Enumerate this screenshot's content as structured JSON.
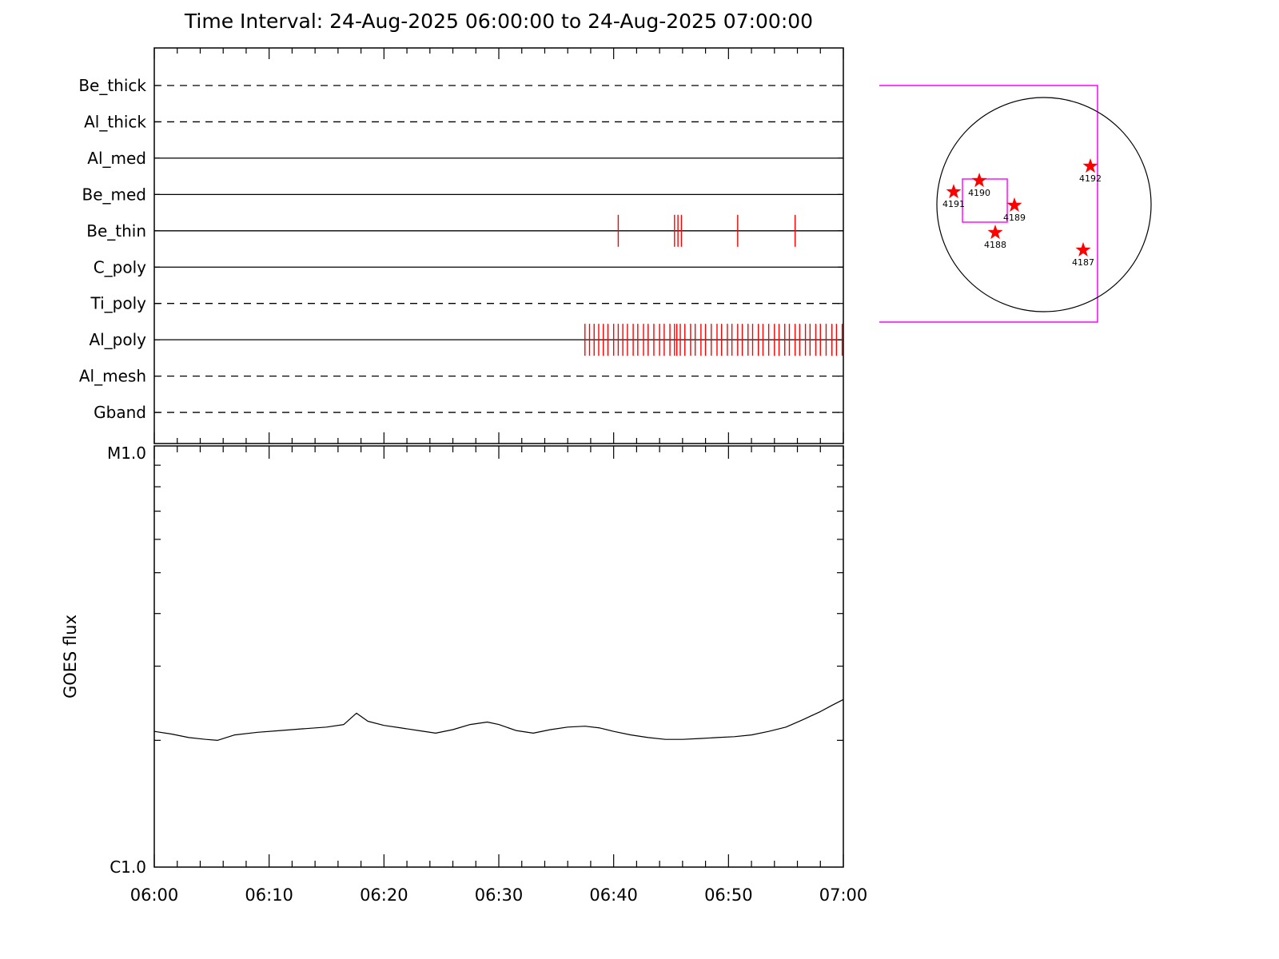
{
  "title": "Time Interval: 24-Aug-2025 06:00:00 to 24-Aug-2025 07:00:00",
  "colors": {
    "event_tick": "#ff0000",
    "fov": "#ff00ff",
    "axis": "#000000",
    "flux_line": "#000000",
    "star": "#ff0000"
  },
  "chart_data": [
    {
      "id": "xrt-filter-timeline",
      "type": "timeline",
      "x_axis": {
        "start_label": "06:00",
        "end_label": "07:00",
        "duration_min": 60,
        "major_tick_min": 10,
        "minor_tick_min": 2
      },
      "rows": [
        {
          "label": "Be_thick",
          "line": "dashed",
          "events_min": []
        },
        {
          "label": "Al_thick",
          "line": "dashed",
          "events_min": []
        },
        {
          "label": "Al_med",
          "line": "solid",
          "events_min": []
        },
        {
          "label": "Be_med",
          "line": "solid",
          "events_min": []
        },
        {
          "label": "Be_thin",
          "line": "solid",
          "events_min": [
            40.4,
            45.3,
            45.6,
            45.9,
            50.8,
            55.8
          ]
        },
        {
          "label": "C_poly",
          "line": "solid",
          "events_min": []
        },
        {
          "label": "Ti_poly",
          "line": "dashed",
          "events_min": []
        },
        {
          "label": "Al_poly",
          "line": "solid",
          "events_min": [
            37.5,
            37.9,
            38.3,
            38.7,
            39.1,
            39.5,
            40.0,
            40.4,
            40.8,
            41.2,
            41.7,
            42.1,
            42.6,
            43.0,
            43.5,
            44.0,
            44.4,
            44.9,
            45.3,
            45.5,
            45.8,
            46.2,
            46.7,
            47.1,
            47.6,
            48.0,
            48.5,
            49.0,
            49.4,
            49.9,
            50.3,
            50.8,
            51.2,
            51.7,
            52.1,
            52.6,
            53.0,
            53.5,
            54.0,
            54.4,
            54.9,
            55.3,
            55.8,
            56.2,
            56.7,
            57.1,
            57.6,
            58.0,
            58.5,
            59.0,
            59.4,
            59.9
          ]
        },
        {
          "label": "Al_mesh",
          "line": "dashed",
          "events_min": []
        },
        {
          "label": "Gband",
          "line": "dashed",
          "events_min": []
        }
      ]
    },
    {
      "id": "goes-flux",
      "type": "line",
      "ylabel": "GOES flux",
      "y_scale": "log",
      "y_axis": {
        "top_label": "M1.0",
        "bottom_label": "C1.0",
        "top_value": 10,
        "bottom_value": 1,
        "minor_values": [
          2,
          3,
          4,
          5,
          6,
          7,
          8,
          9
        ]
      },
      "x_tick_labels": [
        "06:00",
        "06:10",
        "06:20",
        "06:30",
        "06:40",
        "06:50",
        "07:00"
      ],
      "series": [
        {
          "name": "GOES flux",
          "x_min": [
            0,
            1.5,
            3,
            4.5,
            5.5,
            7,
            9,
            11,
            13,
            15,
            16.5,
            17.6,
            18.6,
            20,
            21.5,
            23,
            24.5,
            26,
            27.5,
            29,
            30,
            31.5,
            33,
            34.5,
            36,
            37.5,
            38.8,
            40,
            41.5,
            43,
            44.5,
            46,
            47.5,
            49,
            50.5,
            52,
            53.5,
            55,
            56.5,
            58,
            59,
            60
          ],
          "y_c": [
            2.1,
            2.07,
            2.03,
            2.01,
            2.0,
            2.06,
            2.09,
            2.11,
            2.13,
            2.15,
            2.18,
            2.32,
            2.22,
            2.17,
            2.14,
            2.11,
            2.08,
            2.12,
            2.18,
            2.21,
            2.18,
            2.11,
            2.08,
            2.12,
            2.15,
            2.16,
            2.14,
            2.1,
            2.06,
            2.03,
            2.01,
            2.01,
            2.02,
            2.03,
            2.04,
            2.06,
            2.1,
            2.15,
            2.24,
            2.34,
            2.42,
            2.5
          ]
        }
      ]
    },
    {
      "id": "solar-disk-inset",
      "type": "scatter",
      "fov_color": "#ff00ff",
      "outer_fov_r": {
        "left": -1.537,
        "right": 0.5,
        "top": 1.112,
        "bottom": -1.097,
        "open_left": true
      },
      "inner_fov_r": {
        "left": -0.761,
        "right": -0.343,
        "top": 0.239,
        "bottom": -0.164
      },
      "active_regions": [
        {
          "noaa": "4191",
          "x_r": -0.843,
          "y_r": 0.119
        },
        {
          "noaa": "4190",
          "x_r": -0.604,
          "y_r": 0.224
        },
        {
          "noaa": "4189",
          "x_r": -0.276,
          "y_r": -0.007
        },
        {
          "noaa": "4188",
          "x_r": -0.455,
          "y_r": -0.261
        },
        {
          "noaa": "4187",
          "x_r": 0.366,
          "y_r": -0.425
        },
        {
          "noaa": "4192",
          "x_r": 0.433,
          "y_r": 0.358
        }
      ]
    }
  ]
}
